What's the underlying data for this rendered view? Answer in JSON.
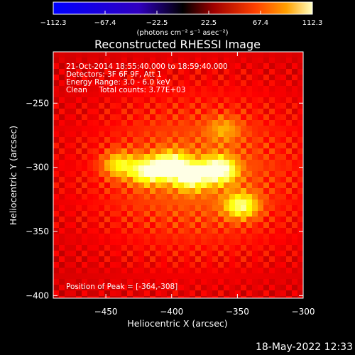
{
  "chart_data": {
    "type": "heatmap",
    "title": "Reconstructed RHESSI Image",
    "xlabel": "Heliocentric X (arcsec)",
    "ylabel": "Heliocentric Y (arcsec)",
    "xlim": [
      -490,
      -300
    ],
    "ylim": [
      -402,
      -210
    ],
    "xticks": [
      -450,
      -400,
      -350,
      -300
    ],
    "yticks": [
      -250,
      -300,
      -350,
      -400
    ],
    "colorbar": {
      "colormap": "red-temperature with blue negatives",
      "range": [
        -112.3,
        112.3
      ],
      "ticks": [
        "-112.3",
        "-67.4",
        "-22.5",
        "22.5",
        "67.4",
        "112.3"
      ],
      "units_label": "(photons cm⁻² s⁻¹ asec⁻²)"
    },
    "sources": [
      {
        "x": -418,
        "y": -303,
        "intensity": 0.8
      },
      {
        "x": -400,
        "y": -299,
        "intensity": 0.95
      },
      {
        "x": -385,
        "y": -307,
        "intensity": 0.85
      },
      {
        "x": -364,
        "y": -302,
        "intensity": 1.0
      },
      {
        "x": -440,
        "y": -298,
        "intensity": 0.55
      },
      {
        "x": -347,
        "y": -330,
        "intensity": 0.7
      },
      {
        "x": -360,
        "y": -270,
        "intensity": 0.3
      }
    ],
    "peak": {
      "x": -364,
      "y": -308
    },
    "annotations": [
      "21-Oct-2014 18:55:40.000 to 18:59:40.000",
      "Detectors: 3F 6F 9F, Att 1",
      "Energy Range: 3.0 - 6.0 keV",
      "Clean     Total counts: 3.77E+03"
    ],
    "peak_label": "Position of Peak = [-364,-308]"
  },
  "footer": {
    "timestamp": "18-May-2022 12:33"
  }
}
